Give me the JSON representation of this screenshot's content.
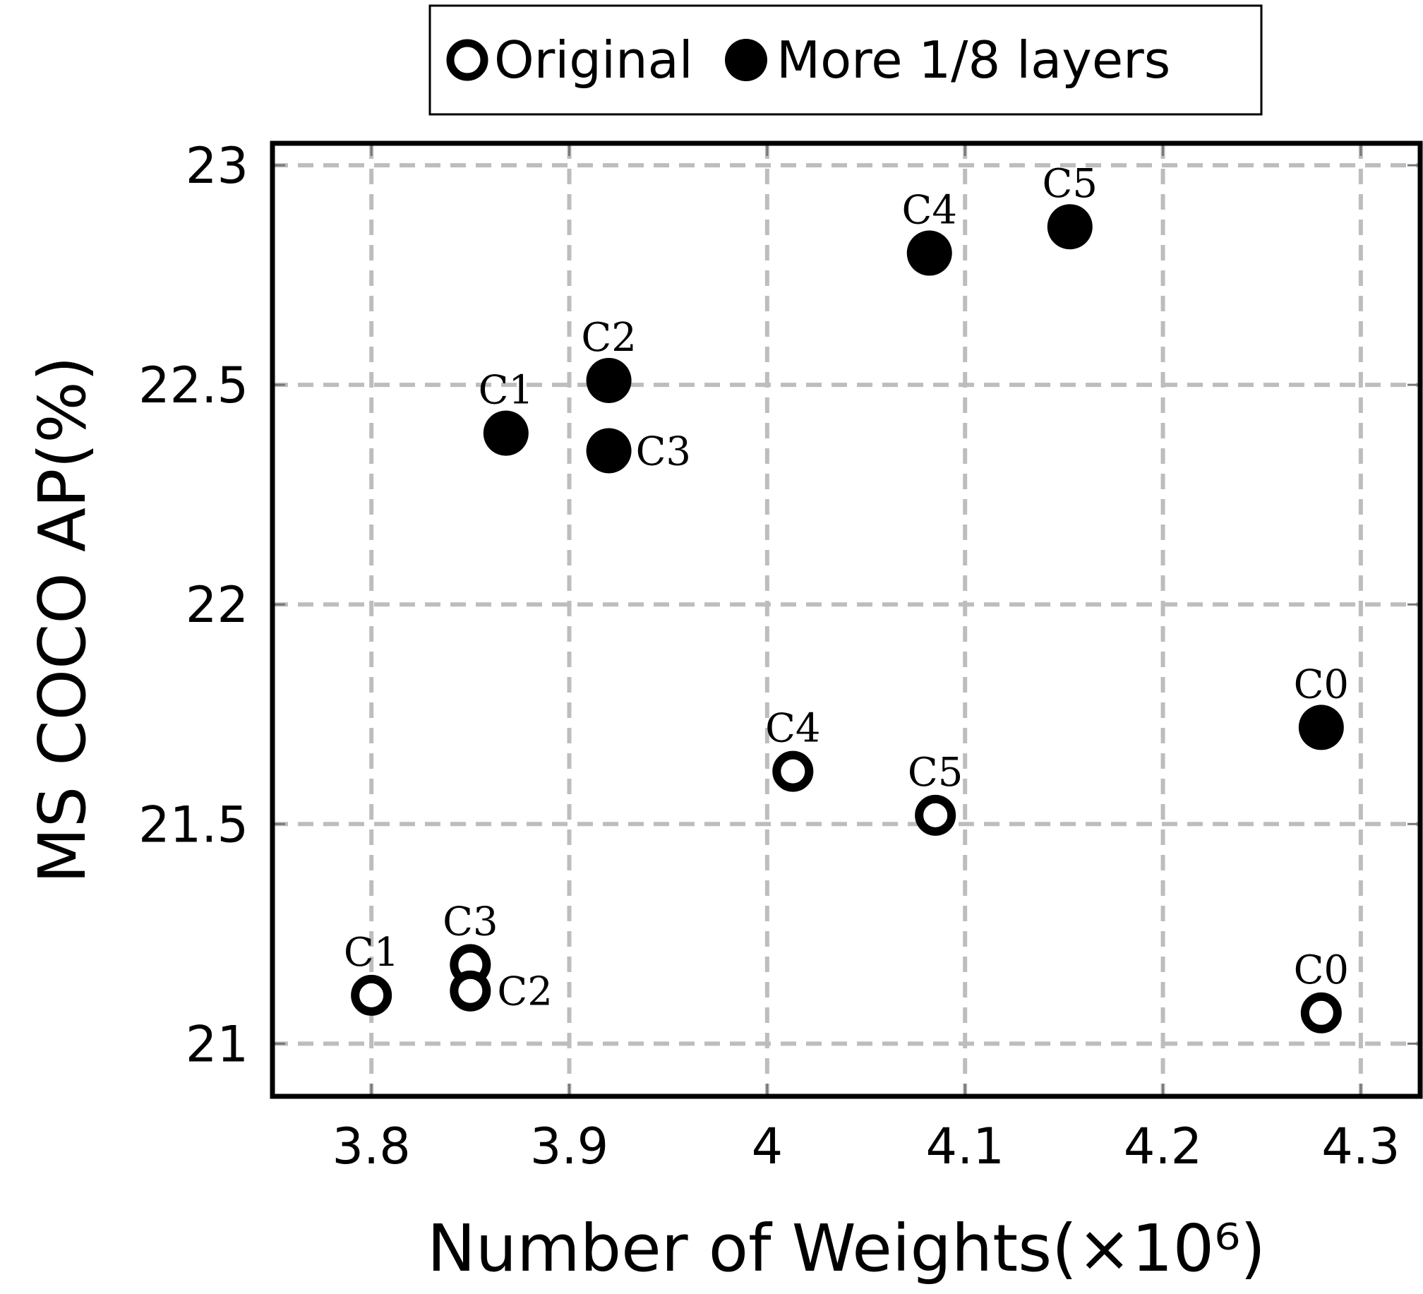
{
  "chart_data": {
    "type": "scatter",
    "xlabel": "Number of Weights(×10⁶)",
    "ylabel": "MS COCO AP(%)",
    "xlim": [
      3.75,
      4.33
    ],
    "ylim": [
      20.88,
      23.05
    ],
    "xticks": [
      3.8,
      3.9,
      4.0,
      4.1,
      4.2,
      4.3
    ],
    "xtick_labels": [
      "3.8",
      "3.9",
      "4",
      "4.1",
      "4.2",
      "4.3"
    ],
    "yticks": [
      21.0,
      21.5,
      22.0,
      22.5,
      23.0
    ],
    "ytick_labels": [
      "21",
      "21.5",
      "22",
      "22.5",
      "23"
    ],
    "grid": true,
    "legend_position": "top-center",
    "series": [
      {
        "name": "Original",
        "marker": "open-circle",
        "color": "#000000",
        "points": [
          {
            "label": "C1",
            "x": 3.8,
            "y": 21.11,
            "label_pos": "above"
          },
          {
            "label": "C3",
            "x": 3.85,
            "y": 21.18,
            "label_pos": "above"
          },
          {
            "label": "C2",
            "x": 3.85,
            "y": 21.12,
            "label_pos": "right"
          },
          {
            "label": "C4",
            "x": 4.013,
            "y": 21.62,
            "label_pos": "above"
          },
          {
            "label": "C5",
            "x": 4.085,
            "y": 21.52,
            "label_pos": "above"
          },
          {
            "label": "C0",
            "x": 4.28,
            "y": 21.07,
            "label_pos": "above"
          }
        ]
      },
      {
        "name": "More 1/8 layers",
        "marker": "filled-circle",
        "color": "#000000",
        "points": [
          {
            "label": "C1",
            "x": 3.868,
            "y": 22.39,
            "label_pos": "above"
          },
          {
            "label": "C2",
            "x": 3.92,
            "y": 22.51,
            "label_pos": "above"
          },
          {
            "label": "C3",
            "x": 3.92,
            "y": 22.35,
            "label_pos": "right"
          },
          {
            "label": "C4",
            "x": 4.082,
            "y": 22.8,
            "label_pos": "above"
          },
          {
            "label": "C5",
            "x": 4.153,
            "y": 22.86,
            "label_pos": "above"
          },
          {
            "label": "C0",
            "x": 4.28,
            "y": 21.72,
            "label_pos": "above"
          }
        ]
      }
    ]
  }
}
